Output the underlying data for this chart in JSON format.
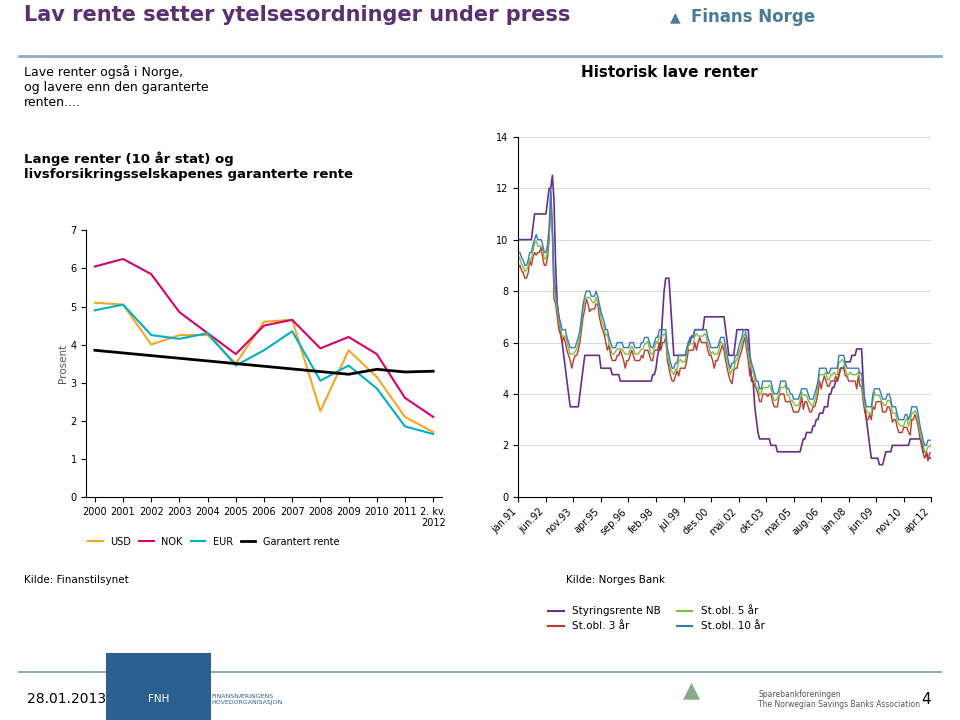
{
  "title": "Lav rente setter ytelsesordninger under press",
  "header_line_color": "#8aafc0",
  "background_color": "#ffffff",
  "left_subtitle": "Lave renter også i Norge,\nog lavere enn den garanterte\nrenten....",
  "left_chart_title": "Lange renter (10 år stat) og\nlivsforsikringsselskapenes garanterte rente",
  "left_ylabel": "Prosent",
  "left_years": [
    2000,
    2001,
    2002,
    2003,
    2004,
    2005,
    2006,
    2007,
    2008,
    2009,
    2010,
    2011,
    2012
  ],
  "left_usd": [
    5.1,
    5.05,
    4.0,
    4.25,
    4.25,
    3.5,
    4.6,
    4.65,
    2.25,
    3.85,
    3.15,
    2.1,
    1.7
  ],
  "left_nok": [
    6.05,
    6.25,
    5.85,
    4.85,
    4.3,
    3.75,
    4.5,
    4.65,
    3.9,
    4.2,
    3.75,
    2.6,
    2.1
  ],
  "left_eur": [
    4.9,
    5.05,
    4.25,
    4.15,
    4.3,
    3.45,
    3.85,
    4.35,
    3.05,
    3.45,
    2.85,
    1.85,
    1.65
  ],
  "left_garantert": [
    3.85,
    3.78,
    3.71,
    3.64,
    3.57,
    3.5,
    3.43,
    3.36,
    3.29,
    3.22,
    3.35,
    3.28,
    3.3
  ],
  "left_ylim": [
    0,
    7
  ],
  "left_yticks": [
    0,
    1,
    2,
    3,
    4,
    5,
    6,
    7
  ],
  "usd_color": "#f5a623",
  "nok_color": "#d6006e",
  "eur_color": "#00b0c8",
  "garantert_color": "#000000",
  "right_title": "Historisk lave renter",
  "right_source": "Kilde: Norges Bank",
  "left_source": "Kilde: Finanstilsynet",
  "right_ylim": [
    0,
    14
  ],
  "right_yticks": [
    0,
    2,
    4,
    6,
    8,
    10,
    12,
    14
  ],
  "right_x_labels": [
    "jan.91",
    "jun.92",
    "nov.93",
    "apr.95",
    "sep.96",
    "feb.98",
    "jul.99",
    "des.00",
    "mai.02",
    "okt.03",
    "mar.05",
    "aug.06",
    "jan.08",
    "jun.09",
    "nov.10",
    "apr.12"
  ],
  "styringsrente_color": "#6b2d8b",
  "stobl3_color": "#c0392b",
  "stobl5_color": "#7dc142",
  "stobl10_color": "#3a7abf",
  "footer_date": "28.01.2013",
  "footer_page": "4"
}
